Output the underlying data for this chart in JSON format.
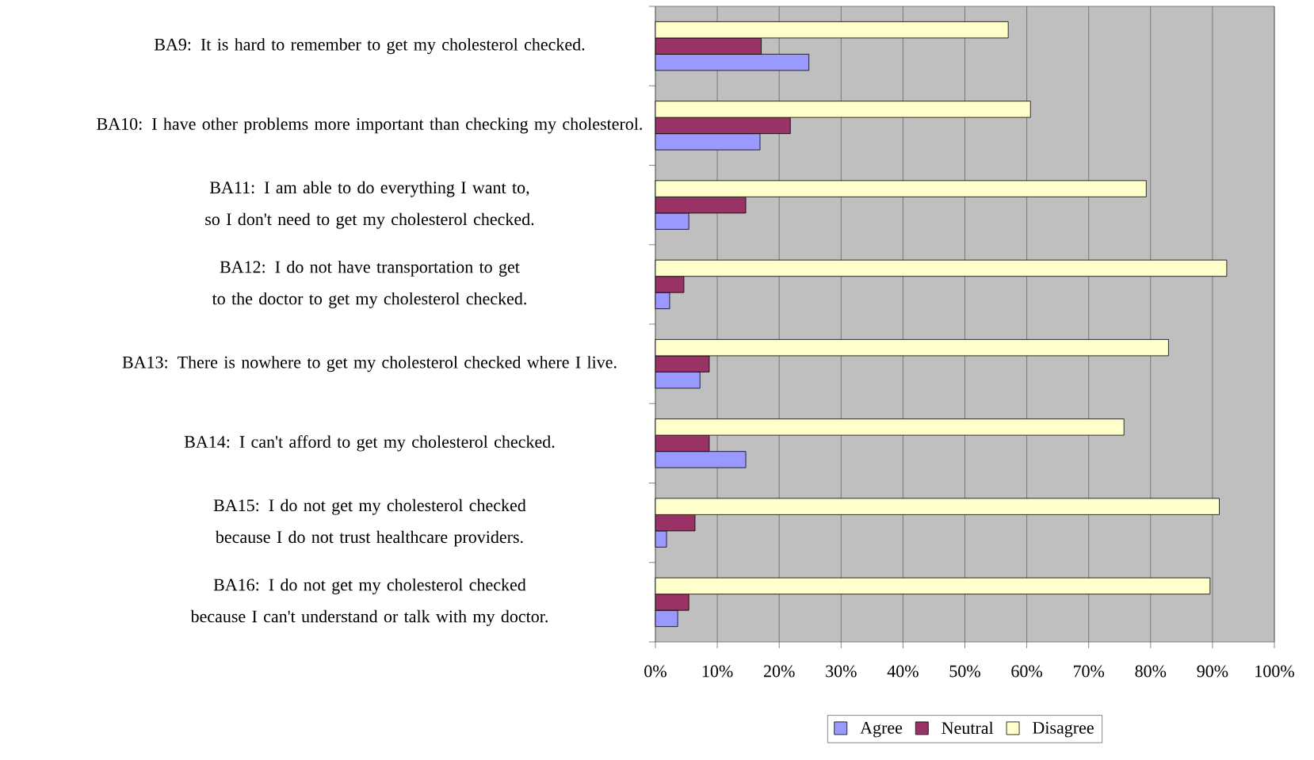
{
  "chart_data": {
    "type": "bar",
    "orientation": "horizontal",
    "categories": [
      "BA9: It is hard to remember to get my cholesterol checked.",
      "BA10: I have other problems more important than checking my cholesterol.",
      "BA11: I am able to do everything I want to, so I don't need to get my cholesterol checked.",
      "BA12: I do not have transportation to get to the doctor to get my cholesterol checked.",
      "BA13: There is nowhere to get my cholesterol checked where I live.",
      "BA14: I can't afford to get my cholesterol checked.",
      "BA15: I do not get my cholesterol checked because I do not trust healthcare providers.",
      "BA16: I do not get my cholesterol checked because I can't understand or talk with my doctor."
    ],
    "series": [
      {
        "name": "Agree",
        "color": "#9999ff",
        "values": [
          24.8,
          16.9,
          5.4,
          2.3,
          7.2,
          14.6,
          1.8,
          3.6
        ]
      },
      {
        "name": "Neutral",
        "color": "#993366",
        "values": [
          17.1,
          21.8,
          14.6,
          4.6,
          8.7,
          8.7,
          6.4,
          5.4
        ]
      },
      {
        "name": "Disagree",
        "color": "#ffffcc",
        "values": [
          57.0,
          60.6,
          79.3,
          92.3,
          82.9,
          75.7,
          91.1,
          89.6
        ]
      }
    ],
    "xlim": [
      0,
      100
    ],
    "xticks": [
      {
        "value": 0,
        "label": "0%"
      },
      {
        "value": 10,
        "label": "10%"
      },
      {
        "value": 20,
        "label": "20%"
      },
      {
        "value": 30,
        "label": "30%"
      },
      {
        "value": 40,
        "label": "40%"
      },
      {
        "value": 50,
        "label": "50%"
      },
      {
        "value": 60,
        "label": "60%"
      },
      {
        "value": 70,
        "label": "70%"
      },
      {
        "value": 80,
        "label": "80%"
      },
      {
        "value": 90,
        "label": "90%"
      },
      {
        "value": 100,
        "label": "100%"
      }
    ],
    "grid": "x",
    "legend": "bottom"
  }
}
